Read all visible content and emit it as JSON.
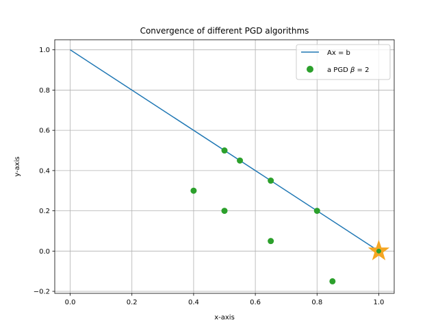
{
  "chart_data": {
    "type": "scatter",
    "title": "Convergence of different PGD algorithms",
    "xlabel": "x-axis",
    "ylabel": "y-axis",
    "xlim": [
      -0.05,
      1.05
    ],
    "ylim": [
      -0.21,
      1.05
    ],
    "xticks": [
      0.0,
      0.2,
      0.4,
      0.6,
      0.8,
      1.0
    ],
    "xtick_labels": [
      "0.0",
      "0.2",
      "0.4",
      "0.6",
      "0.8",
      "1.0"
    ],
    "yticks": [
      -0.2,
      0.0,
      0.2,
      0.4,
      0.6,
      0.8,
      1.0
    ],
    "ytick_labels": [
      "−0.2",
      "0.0",
      "0.2",
      "0.4",
      "0.6",
      "0.8",
      "1.0"
    ],
    "grid": true,
    "legend_position": "top-right",
    "series": [
      {
        "name": "Ax = b",
        "kind": "line",
        "color": "#1f77b4",
        "x": [
          0.0,
          1.0
        ],
        "y": [
          1.0,
          0.0
        ]
      },
      {
        "name": "a PGD β = 2",
        "kind": "scatter",
        "color": "#2ca02c",
        "x": [
          0.5,
          0.55,
          0.65,
          0.8,
          1.0,
          0.4,
          0.5,
          0.65,
          0.85
        ],
        "y": [
          0.5,
          0.45,
          0.35,
          0.2,
          0.0,
          0.3,
          0.2,
          0.05,
          -0.15
        ]
      }
    ],
    "annotations": [
      {
        "kind": "star-marker",
        "color": "#f5a623",
        "x": 1.0,
        "y": 0.0
      }
    ],
    "legend": {
      "line_label": "Ax = b",
      "scatter_label_prefix": "a PGD ",
      "scatter_label_symbol": "β",
      "scatter_label_suffix": " = 2"
    }
  }
}
